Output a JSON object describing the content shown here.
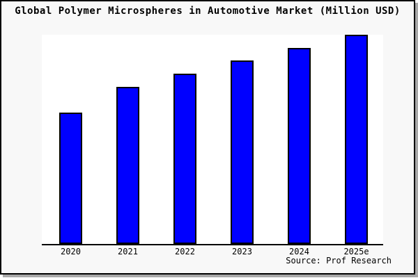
{
  "title": "Global Polymer Microspheres in Automotive Market (Million USD)",
  "source_label": "Source: Prof Research",
  "colors": {
    "bar_fill": "#0000ff",
    "bar_border": "#000000",
    "axis": "#000000",
    "figure_background": "#f8f8f8",
    "plot_background": "#ffffff",
    "shadow": "#a8a8a8",
    "text": "#000000"
  },
  "chart_data": {
    "type": "bar",
    "title": "Global Polymer Microspheres in Automotive Market (Million USD)",
    "categories": [
      "2020",
      "2021",
      "2022",
      "2023",
      "2024",
      "2025e"
    ],
    "values": [
      62.8,
      75.1,
      81.4,
      87.7,
      93.7,
      100
    ],
    "values_note": "No y-axis ticks or value labels are shown in the image; values are estimated relative bar heights with 2025e = 100",
    "xlabel": "",
    "ylabel": "",
    "ylim": [
      0,
      100
    ],
    "grid": false,
    "legend": false,
    "axes_shown": [
      "bottom"
    ],
    "source": "Source: Prof Research"
  }
}
